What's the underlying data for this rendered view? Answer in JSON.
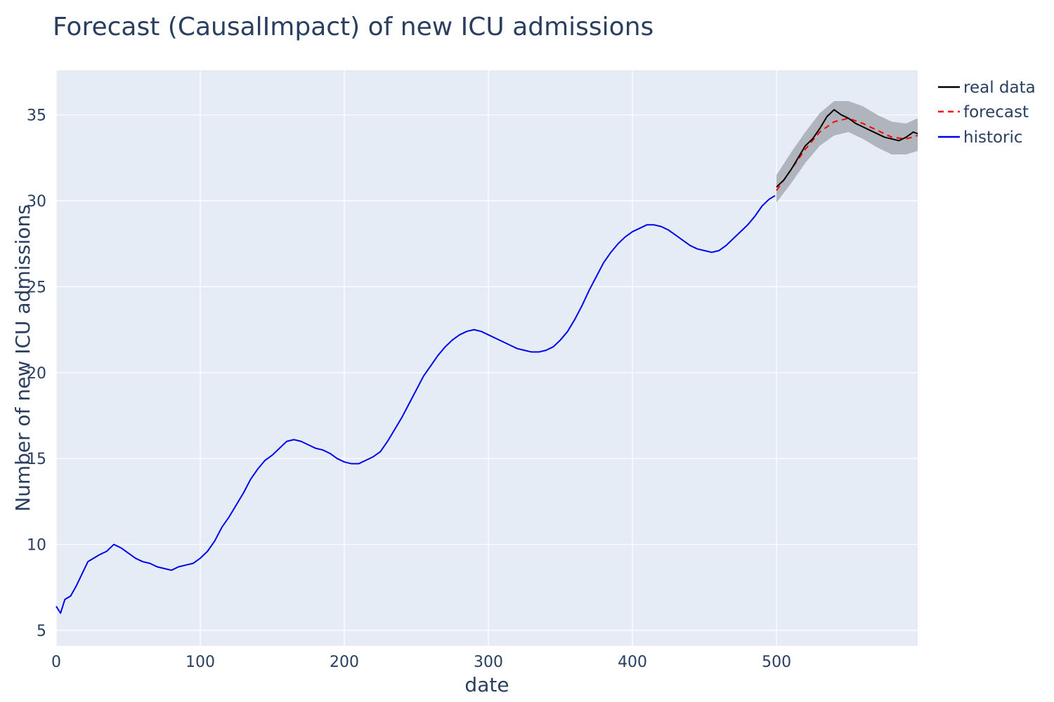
{
  "chart_data": {
    "type": "line",
    "title": "Forecast (CausalImpact) of new ICU admissions",
    "xlabel": "date",
    "ylabel": "Number of new ICU admissions",
    "xlim": [
      0,
      598
    ],
    "ylim": [
      4.1,
      37.6
    ],
    "x_ticks": [
      0,
      100,
      200,
      300,
      400,
      500
    ],
    "x_tick_labels": [
      "0",
      "100",
      "200",
      "300",
      "400",
      "500"
    ],
    "y_ticks": [
      5,
      10,
      15,
      20,
      25,
      30,
      35
    ],
    "y_tick_labels": [
      "5",
      "10",
      "15",
      "20",
      "25",
      "30",
      "35"
    ],
    "grid": true,
    "legend_position": "top-right",
    "colors": {
      "plot_bg": "#e5ecf6",
      "grid": "#ffffff",
      "band": "#b0b4bc",
      "real": "#000000",
      "forecast": "#ff0000",
      "historic": "#0000ee"
    },
    "series": [
      {
        "name": "historic",
        "color": "#0000ee",
        "x": [
          0,
          3,
          6,
          10,
          14,
          18,
          22,
          26,
          30,
          35,
          40,
          45,
          50,
          55,
          60,
          65,
          70,
          75,
          80,
          85,
          90,
          95,
          100,
          105,
          110,
          115,
          120,
          125,
          130,
          135,
          140,
          145,
          150,
          155,
          160,
          165,
          170,
          175,
          180,
          185,
          190,
          195,
          200,
          205,
          210,
          215,
          220,
          225,
          230,
          235,
          240,
          245,
          250,
          255,
          260,
          265,
          270,
          275,
          280,
          285,
          290,
          295,
          300,
          305,
          310,
          315,
          320,
          325,
          330,
          335,
          340,
          345,
          350,
          355,
          360,
          365,
          370,
          375,
          380,
          385,
          390,
          395,
          400,
          405,
          410,
          415,
          420,
          425,
          430,
          435,
          440,
          445,
          450,
          455,
          460,
          465,
          470,
          475,
          480,
          485,
          490,
          495,
          499
        ],
        "y": [
          6.4,
          6.0,
          6.8,
          7.0,
          7.6,
          8.3,
          9.0,
          9.2,
          9.4,
          9.6,
          10.0,
          9.8,
          9.5,
          9.2,
          9.0,
          8.9,
          8.7,
          8.6,
          8.5,
          8.7,
          8.8,
          8.9,
          9.2,
          9.6,
          10.2,
          11.0,
          11.6,
          12.3,
          13.0,
          13.8,
          14.4,
          14.9,
          15.2,
          15.6,
          16.0,
          16.1,
          16.0,
          15.8,
          15.6,
          15.5,
          15.3,
          15.0,
          14.8,
          14.7,
          14.7,
          14.9,
          15.1,
          15.4,
          16.0,
          16.7,
          17.4,
          18.2,
          19.0,
          19.8,
          20.4,
          21.0,
          21.5,
          21.9,
          22.2,
          22.4,
          22.5,
          22.4,
          22.2,
          22.0,
          21.8,
          21.6,
          21.4,
          21.3,
          21.2,
          21.2,
          21.3,
          21.5,
          21.9,
          22.4,
          23.1,
          23.9,
          24.8,
          25.6,
          26.4,
          27.0,
          27.5,
          27.9,
          28.2,
          28.4,
          28.6,
          28.6,
          28.5,
          28.3,
          28.0,
          27.7,
          27.4,
          27.2,
          27.1,
          27.0,
          27.1,
          27.4,
          27.8,
          28.2,
          28.6,
          29.1,
          29.7,
          30.1,
          30.3
        ]
      },
      {
        "name": "real data",
        "color": "#000000",
        "x": [
          500,
          505,
          510,
          515,
          520,
          525,
          530,
          535,
          540,
          545,
          550,
          555,
          560,
          565,
          570,
          575,
          580,
          585,
          590,
          595,
          598
        ],
        "y": [
          30.8,
          31.2,
          31.8,
          32.5,
          33.2,
          33.6,
          34.2,
          34.9,
          35.3,
          35.0,
          34.8,
          34.5,
          34.3,
          34.1,
          33.9,
          33.7,
          33.6,
          33.5,
          33.7,
          34.0,
          33.9
        ]
      },
      {
        "name": "forecast",
        "color": "#ff0000",
        "dash": true,
        "x": [
          500,
          510,
          520,
          530,
          540,
          550,
          560,
          570,
          580,
          590,
          598
        ],
        "y": [
          30.6,
          31.8,
          33.0,
          34.0,
          34.6,
          34.8,
          34.5,
          34.1,
          33.7,
          33.6,
          33.8
        ],
        "band_upper": [
          31.5,
          32.8,
          34.0,
          35.1,
          35.8,
          35.8,
          35.5,
          35.0,
          34.6,
          34.5,
          34.8
        ],
        "band_lower": [
          29.9,
          31.0,
          32.2,
          33.2,
          33.8,
          34.0,
          33.6,
          33.1,
          32.7,
          32.7,
          32.9
        ]
      }
    ]
  }
}
